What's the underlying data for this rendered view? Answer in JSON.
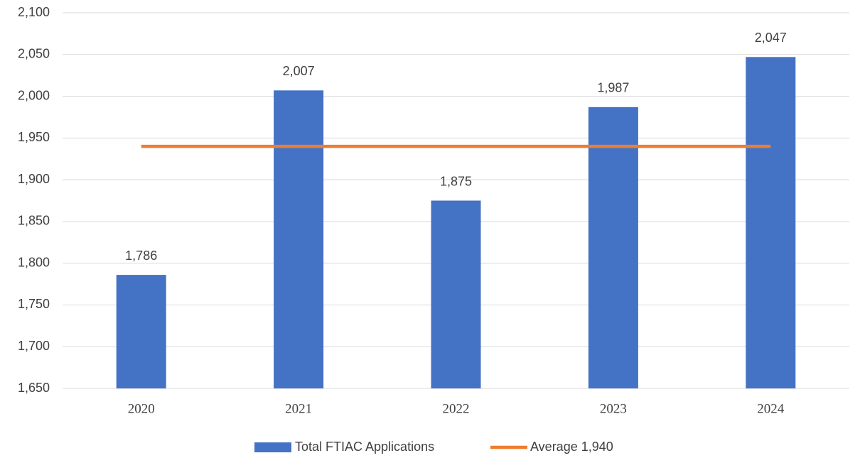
{
  "chart_data": {
    "type": "bar",
    "categories": [
      "2020",
      "2021",
      "2022",
      "2023",
      "2024"
    ],
    "series": [
      {
        "name": "Total FTIAC Applications",
        "type": "bar",
        "color": "#4472c4",
        "values": [
          1786,
          2007,
          1875,
          1987,
          2047
        ],
        "value_labels": [
          "1,786",
          "2,007",
          "1,875",
          "1,987",
          "2,047"
        ]
      },
      {
        "name": "Average 1,940",
        "type": "line",
        "color": "#ed7d31",
        "values": [
          1940,
          1940,
          1940,
          1940,
          1940
        ]
      }
    ],
    "ylim": [
      1650,
      2100
    ],
    "yticks": [
      {
        "value": 1650,
        "label": "1,650"
      },
      {
        "value": 1700,
        "label": "1,700"
      },
      {
        "value": 1750,
        "label": "1,750"
      },
      {
        "value": 1800,
        "label": "1,800"
      },
      {
        "value": 1850,
        "label": "1,850"
      },
      {
        "value": 1900,
        "label": "1,900"
      },
      {
        "value": 1950,
        "label": "1,950"
      },
      {
        "value": 2000,
        "label": "2,000"
      },
      {
        "value": 2050,
        "label": "2,050"
      },
      {
        "value": 2100,
        "label": "2,100"
      }
    ],
    "grid": true,
    "legend": "bottom"
  }
}
